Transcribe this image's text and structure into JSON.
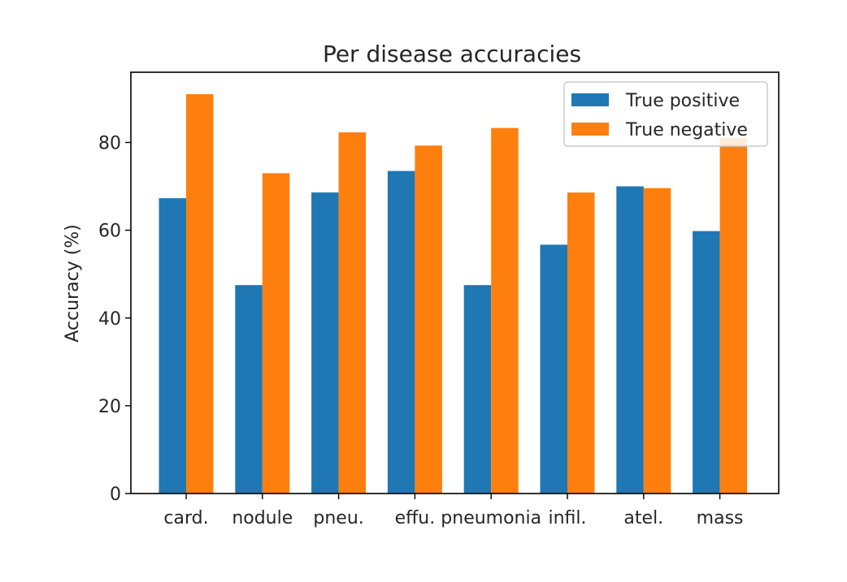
{
  "chart_data": {
    "type": "bar",
    "title": "Per disease accuracies",
    "xlabel": "",
    "ylabel": "Accuracy (%)",
    "categories": [
      "card.",
      "nodule",
      "pneu.",
      "effu.",
      "pneumonia",
      "infil.",
      "atel.",
      "mass"
    ],
    "series": [
      {
        "name": "True positive",
        "color": "#1f77b4",
        "values": [
          67.3,
          47.5,
          68.6,
          73.5,
          47.5,
          56.7,
          70.0,
          59.8
        ]
      },
      {
        "name": "True negative",
        "color": "#ff7f0e",
        "values": [
          91.0,
          73.0,
          82.3,
          79.3,
          83.3,
          68.6,
          69.6,
          81.0
        ]
      }
    ],
    "ylim": [
      0,
      96
    ],
    "yticks": [
      0,
      20,
      40,
      60,
      80
    ],
    "legend": "top-right",
    "grid": false
  }
}
